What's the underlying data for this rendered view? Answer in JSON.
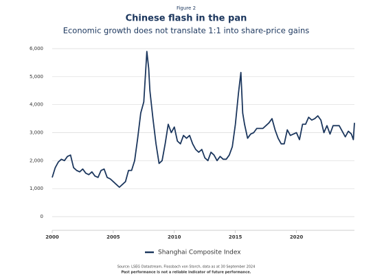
{
  "chart_data": {
    "type": "line",
    "figure_label": "Figure 2",
    "title": "Chinese flash in the pan",
    "subtitle": "Economic growth does not translate 1:1 into share-price gains",
    "source": "Source: LSEG Datastream, Flossbach von Storch, data as at 30 September 2024",
    "note": "Past performance is not a reliable indicator of future performance.",
    "x": [
      2000.0,
      2000.25,
      2000.5,
      2000.75,
      2001.0,
      2001.25,
      2001.5,
      2001.75,
      2002.0,
      2002.25,
      2002.5,
      2002.75,
      2003.0,
      2003.25,
      2003.5,
      2003.75,
      2004.0,
      2004.25,
      2004.5,
      2004.75,
      2005.0,
      2005.25,
      2005.5,
      2005.75,
      2006.0,
      2006.25,
      2006.5,
      2006.75,
      2007.0,
      2007.25,
      2007.5,
      2007.75,
      2007.9,
      2008.0,
      2008.25,
      2008.5,
      2008.75,
      2009.0,
      2009.25,
      2009.5,
      2009.75,
      2010.0,
      2010.25,
      2010.5,
      2010.75,
      2011.0,
      2011.25,
      2011.5,
      2011.75,
      2012.0,
      2012.25,
      2012.5,
      2012.75,
      2013.0,
      2013.25,
      2013.5,
      2013.75,
      2014.0,
      2014.25,
      2014.5,
      2014.75,
      2015.0,
      2015.25,
      2015.45,
      2015.6,
      2015.75,
      2016.0,
      2016.25,
      2016.5,
      2016.75,
      2017.0,
      2017.25,
      2017.5,
      2017.75,
      2018.0,
      2018.25,
      2018.5,
      2018.75,
      2019.0,
      2019.25,
      2019.5,
      2019.75,
      2020.0,
      2020.25,
      2020.5,
      2020.75,
      2021.0,
      2021.25,
      2021.5,
      2021.75,
      2022.0,
      2022.25,
      2022.5,
      2022.75,
      2023.0,
      2023.25,
      2023.5,
      2023.75,
      2024.0,
      2024.25,
      2024.5,
      2024.66,
      2024.75
    ],
    "series": [
      {
        "name": "Shanghai Composite Index",
        "color": "#1b365d",
        "values": [
          1400,
          1750,
          1950,
          2050,
          2000,
          2150,
          2200,
          1750,
          1650,
          1600,
          1700,
          1550,
          1500,
          1600,
          1450,
          1400,
          1650,
          1700,
          1400,
          1350,
          1250,
          1150,
          1050,
          1150,
          1250,
          1650,
          1650,
          2000,
          2800,
          3700,
          4100,
          5900,
          5300,
          4500,
          3500,
          2600,
          1900,
          2000,
          2600,
          3300,
          3000,
          3200,
          2700,
          2600,
          2900,
          2800,
          2900,
          2600,
          2400,
          2300,
          2400,
          2100,
          2000,
          2300,
          2200,
          2000,
          2150,
          2050,
          2050,
          2200,
          2500,
          3300,
          4400,
          5150,
          3700,
          3300,
          2800,
          2950,
          3000,
          3150,
          3150,
          3150,
          3250,
          3350,
          3500,
          3100,
          2800,
          2600,
          2600,
          3100,
          2900,
          2950,
          3000,
          2750,
          3300,
          3300,
          3550,
          3450,
          3500,
          3600,
          3450,
          3000,
          3250,
          2950,
          3250,
          3250,
          3250,
          3050,
          2850,
          3050,
          2950,
          2750,
          3350
        ]
      }
    ],
    "xlim": [
      2000,
      2024.75
    ],
    "xticks": [
      2000,
      2005,
      2010,
      2015,
      2020
    ],
    "ylim": [
      0,
      6000
    ],
    "yticks": [
      0,
      {
        "value": 1000,
        "label": "1,000"
      },
      {
        "value": 2000,
        "label": "2,000"
      },
      {
        "value": 3000,
        "label": "3,000"
      },
      {
        "value": 4000,
        "label": "4,000"
      },
      {
        "value": 5000,
        "label": "5,000"
      },
      {
        "value": 6000,
        "label": "6,000"
      }
    ],
    "grid": true
  }
}
